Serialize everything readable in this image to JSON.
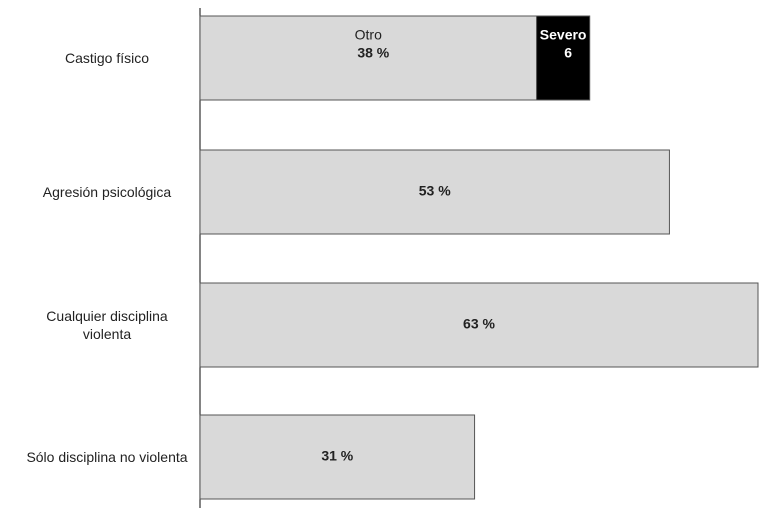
{
  "chart_data": {
    "type": "stacked-bar-horizontal",
    "categories": [
      "Castigo físico",
      "Agresión psicológica",
      "Cualquier disciplina violenta",
      "Sólo disciplina no violenta"
    ],
    "series": [
      {
        "name": "Otro",
        "color": "#d9d9d9",
        "values": [
          38,
          53,
          63,
          31
        ],
        "value_labels": [
          "38 %",
          "53 %",
          "63 %",
          "31 %"
        ]
      },
      {
        "name": "Severo",
        "color": "#000000",
        "values": [
          6,
          null,
          null,
          null
        ]
      }
    ]
  }
}
